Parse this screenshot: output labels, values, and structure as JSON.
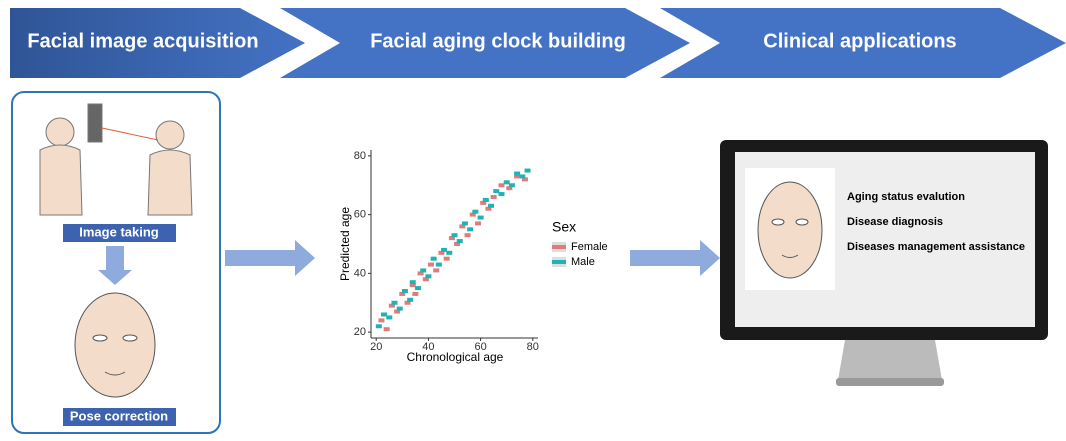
{
  "steps": [
    "Facial image acquisition",
    "Facial aging clock building",
    "Clinical applications"
  ],
  "acquisition": {
    "image_taking": "Image taking",
    "pose_correction": "Pose correction"
  },
  "chart_data": {
    "type": "scatter",
    "x_label": "Chronological age",
    "y_label": "Predicted age",
    "legend_title": "Sex",
    "xlim": [
      18,
      82
    ],
    "ylim": [
      18,
      82
    ],
    "xticks": [
      20,
      40,
      60,
      80
    ],
    "yticks": [
      20,
      40,
      60,
      80
    ],
    "series": [
      {
        "name": "Female",
        "color": "#e07b7b",
        "x": [
          22,
          24,
          26,
          28,
          30,
          32,
          34,
          35,
          37,
          39,
          41,
          43,
          45,
          47,
          49,
          51,
          53,
          55,
          57,
          59,
          61,
          63,
          65,
          68,
          71,
          74,
          77
        ],
        "values": [
          24,
          21,
          29,
          27,
          33,
          30,
          36,
          33,
          40,
          38,
          43,
          41,
          47,
          45,
          52,
          50,
          56,
          53,
          60,
          57,
          64,
          62,
          66,
          70,
          69,
          73,
          72
        ]
      },
      {
        "name": "Male",
        "color": "#1fb3b3",
        "x": [
          21,
          23,
          25,
          27,
          29,
          31,
          33,
          34,
          36,
          38,
          40,
          42,
          44,
          46,
          48,
          50,
          52,
          54,
          56,
          58,
          60,
          62,
          64,
          66,
          68,
          70,
          72,
          74,
          76,
          78
        ],
        "values": [
          22,
          26,
          25,
          30,
          28,
          34,
          31,
          37,
          35,
          41,
          39,
          45,
          43,
          48,
          47,
          53,
          51,
          57,
          55,
          61,
          59,
          65,
          63,
          68,
          67,
          71,
          70,
          74,
          73,
          75
        ]
      }
    ]
  },
  "applications": [
    "Aging status evalution",
    "Disease diagnosis",
    "Diseases management assistance"
  ]
}
